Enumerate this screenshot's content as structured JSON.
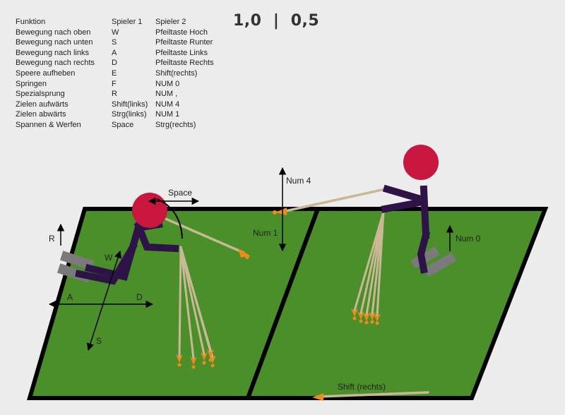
{
  "controls": {
    "header": [
      "Funktion",
      "Spieler 1",
      "Spieler 2"
    ],
    "rows": [
      [
        "Bewegung nach oben",
        "W",
        "Pfeiltaste Hoch"
      ],
      [
        "Bewegung nach unten",
        "S",
        "Pfeiltaste Runter"
      ],
      [
        "Bewegung nach links",
        "A",
        "Pfeiltaste Links"
      ],
      [
        "Bewegung nach rechts",
        "D",
        "Pfeiltaste Rechts"
      ],
      [
        "Speere aufheben",
        "E",
        "Shift(rechts)"
      ],
      [
        "Springen",
        "F",
        "NUM 0"
      ],
      [
        "Spezialsprung",
        "R",
        "NUM ,"
      ],
      [
        "Zielen aufwärts",
        "Shift(links)",
        "NUM 4"
      ],
      [
        "Zielen abwärts",
        "Strg(links)",
        "NUM 1"
      ],
      [
        "Spannen & Werfen",
        "Space",
        "Strg(rechts)"
      ]
    ]
  },
  "score": {
    "player1": "1,0",
    "separator": "|",
    "player2": "0,5"
  },
  "labels": {
    "space": "Space",
    "r": "R",
    "w": "W",
    "a": "A",
    "d": "D",
    "s": "S",
    "num4": "Num 4",
    "num1": "Num 1",
    "num0": "Num 0",
    "shift_right": "Shift (rechts)"
  },
  "colors": {
    "field": "#4a8f2a",
    "border": "#000000",
    "player_body": "#2e1446",
    "player_head": "#c8163e",
    "spear_shaft": "#c8b896",
    "spear_tip": "#f08a1a",
    "shoe": "#7a7a7a"
  }
}
